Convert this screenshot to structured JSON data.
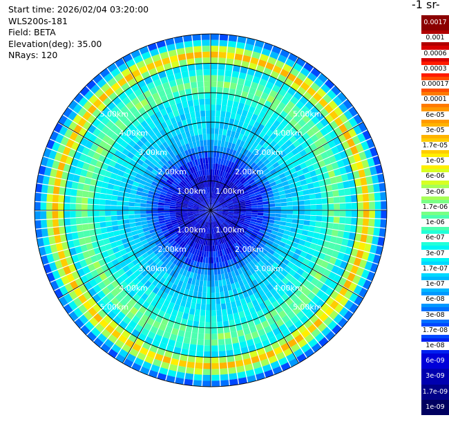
{
  "info": {
    "start_time": "Start time: 2026/02/04 03:20:00",
    "instrument": "WLS200s-181",
    "field": "Field: BETA",
    "elevation": "Elevation(deg): 35.00",
    "nrays": "NRays: 120"
  },
  "colorbar": {
    "title": "-1 sr-",
    "labels": [
      "0.0017",
      "0.001",
      "0.0006",
      "0.0003",
      "0.00017",
      "0.0001",
      "6e-05",
      "3e-05",
      "1.7e-05",
      "1e-05",
      "6e-06",
      "3e-06",
      "1.7e-06",
      "1e-06",
      "6e-07",
      "3e-07",
      "1.7e-07",
      "1e-07",
      "6e-08",
      "3e-08",
      "1.7e-08",
      "1e-08",
      "6e-09",
      "3e-09",
      "1.7e-09",
      "1e-09"
    ],
    "colors": [
      "#8b0000",
      "#b00000",
      "#d80000",
      "#ff1a00",
      "#ff4d00",
      "#ff7a00",
      "#ff9900",
      "#ffb300",
      "#ffcc00",
      "#ffee00",
      "#d8ff22",
      "#a6ff57",
      "#78ff85",
      "#4cffb0",
      "#22ffd8",
      "#00f5f5",
      "#00d8ff",
      "#00b8ff",
      "#0098ff",
      "#0070ff",
      "#0048ff",
      "#0020f0",
      "#0000d8",
      "#0000b0",
      "#000088",
      "#000060"
    ]
  },
  "chart_data": {
    "type": "polar-ppi",
    "field": "BETA",
    "elevation_deg": 35.0,
    "nrays": 120,
    "range_ring_labels": [
      "1.00km",
      "2.00km",
      "3.00km",
      "4.00km",
      "5.00km"
    ],
    "range_rings_km": [
      1,
      2,
      3,
      4,
      5
    ],
    "radial_bins_km": [
      0.2,
      0.4,
      0.6,
      0.8,
      1.0,
      1.2,
      1.4,
      1.6,
      1.8,
      2.0,
      2.2,
      2.4,
      2.6,
      2.8,
      3.0,
      3.2,
      3.4,
      3.6,
      3.8,
      4.0,
      4.2,
      4.4,
      4.6,
      4.8,
      5.0,
      5.2,
      5.4,
      5.6,
      5.8,
      6.0
    ],
    "beta_profile": [
      8e-09,
      7e-09,
      6e-09,
      6e-09,
      5e-09,
      5e-09,
      7e-09,
      1e-08,
      1.2e-08,
      2e-08,
      4e-08,
      8e-08,
      1.2e-07,
      1.5e-07,
      1.7e-07,
      1.8e-07,
      2e-07,
      2.5e-07,
      3e-07,
      4e-07,
      1e-06,
      1.5e-06,
      1e-06,
      4e-07,
      2e-07,
      3e-06,
      2e-05,
      3e-06,
      2e-07,
      3e-08
    ],
    "scale": "log",
    "vmin": 1e-09,
    "vmax": 0.0017
  }
}
